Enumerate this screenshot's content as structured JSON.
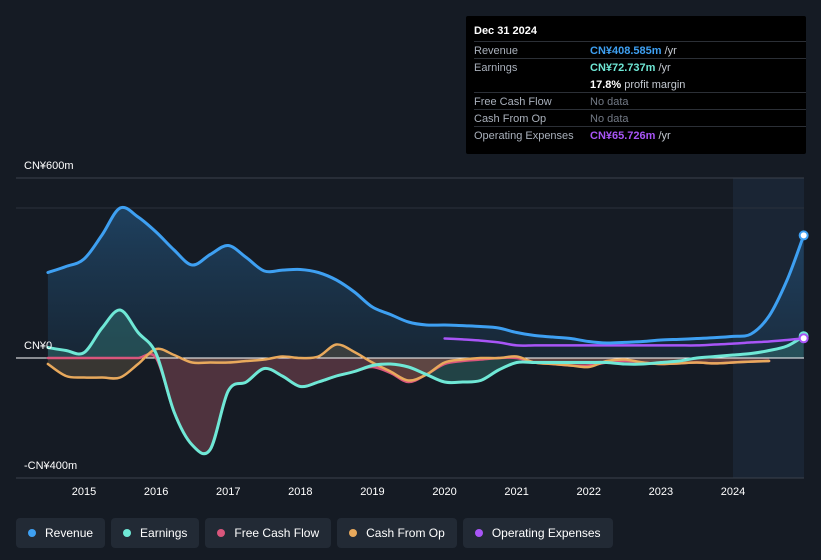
{
  "tooltip": {
    "date": "Dec 31 2024",
    "rows": [
      {
        "label": "Revenue",
        "value": "CN¥408.585m",
        "unit": " /yr",
        "color": "#3ea0f2"
      },
      {
        "label": "Earnings",
        "value": "CN¥72.737m",
        "unit": " /yr",
        "color": "#6fe8d6"
      },
      {
        "label": "Free Cash Flow",
        "value": "No data"
      },
      {
        "label": "Cash From Op",
        "value": "No data"
      },
      {
        "label": "Operating Expenses",
        "value": "CN¥65.726m",
        "unit": " /yr",
        "color": "#a855f7"
      }
    ],
    "margin_value": "17.8%",
    "margin_label": " profit margin"
  },
  "axis": {
    "top_label": "CN¥600m",
    "zero_label": "CN¥0",
    "bottom_label": "-CN¥400m"
  },
  "legend": [
    {
      "label": "Revenue",
      "color": "#3ea0f2"
    },
    {
      "label": "Earnings",
      "color": "#6fe8d6"
    },
    {
      "label": "Free Cash Flow",
      "color": "#d9567c"
    },
    {
      "label": "Cash From Op",
      "color": "#e8a95c"
    },
    {
      "label": "Operating Expenses",
      "color": "#a855f7"
    }
  ],
  "chart_data": {
    "type": "line",
    "title": "",
    "ylim": [
      -400,
      600
    ],
    "x_ticks": [
      "2015",
      "2016",
      "2017",
      "2018",
      "2019",
      "2020",
      "2021",
      "2022",
      "2023",
      "2024"
    ],
    "series": [
      {
        "name": "Revenue",
        "color": "#3ea0f2",
        "x": [
          2014.5,
          2014.75,
          2015.0,
          2015.25,
          2015.5,
          2015.75,
          2016.0,
          2016.25,
          2016.5,
          2016.75,
          2017.0,
          2017.25,
          2017.5,
          2017.75,
          2018.0,
          2018.25,
          2018.5,
          2018.75,
          2019.0,
          2019.25,
          2019.5,
          2019.75,
          2020.0,
          2020.25,
          2020.5,
          2020.75,
          2021.0,
          2021.25,
          2021.5,
          2021.75,
          2022.0,
          2022.25,
          2022.5,
          2022.75,
          2023.0,
          2023.25,
          2023.5,
          2023.75,
          2024.0,
          2024.25,
          2024.5,
          2024.75,
          2024.98
        ],
        "values": [
          285,
          305,
          330,
          410,
          500,
          470,
          420,
          360,
          310,
          345,
          375,
          335,
          290,
          293,
          295,
          285,
          260,
          220,
          170,
          145,
          120,
          110,
          110,
          108,
          105,
          100,
          85,
          75,
          70,
          65,
          55,
          50,
          52,
          55,
          60,
          62,
          65,
          68,
          72,
          80,
          140,
          260,
          408.6
        ]
      },
      {
        "name": "Earnings",
        "color": "#6fe8d6",
        "x": [
          2014.5,
          2014.75,
          2015.0,
          2015.25,
          2015.5,
          2015.75,
          2016.0,
          2016.25,
          2016.5,
          2016.75,
          2017.0,
          2017.25,
          2017.5,
          2017.75,
          2018.0,
          2018.25,
          2018.5,
          2018.75,
          2019.0,
          2019.25,
          2019.5,
          2019.75,
          2020.0,
          2020.25,
          2020.5,
          2020.75,
          2021.0,
          2021.25,
          2021.5,
          2021.75,
          2022.0,
          2022.25,
          2022.5,
          2022.75,
          2023.0,
          2023.25,
          2023.5,
          2023.75,
          2024.0,
          2024.25,
          2024.5,
          2024.75,
          2024.98
        ],
        "values": [
          35,
          25,
          18,
          100,
          160,
          85,
          15,
          -180,
          -290,
          -305,
          -110,
          -80,
          -35,
          -60,
          -95,
          -80,
          -60,
          -45,
          -25,
          -20,
          -30,
          -55,
          -80,
          -80,
          -75,
          -40,
          -15,
          -15,
          -15,
          -15,
          -15,
          -15,
          -20,
          -20,
          -15,
          -10,
          0,
          5,
          10,
          15,
          25,
          40,
          72.7
        ]
      },
      {
        "name": "Free Cash Flow",
        "color": "#d9567c",
        "x": [
          2014.5,
          2014.75,
          2015.0,
          2015.25,
          2015.5,
          2015.75,
          2016.0,
          2016.25,
          2016.5,
          2016.75,
          2017.0,
          2017.25,
          2017.5,
          2017.75,
          2018.0,
          2018.25,
          2018.5,
          2018.75,
          2019.0,
          2019.25,
          2019.5,
          2019.75,
          2020.0,
          2020.25,
          2020.5,
          2020.75,
          2021.0,
          2021.25,
          2021.5,
          2021.75,
          2022.0,
          2022.25,
          2022.5,
          2022.75,
          2023.0,
          2023.25,
          2023.5,
          2023.75,
          2024.0,
          2024.25,
          2024.5
        ],
        "values": [
          0,
          0,
          0,
          0,
          0,
          0,
          0,
          -180,
          -290,
          -305,
          -110,
          -80,
          -35,
          -60,
          -95,
          -80,
          -60,
          -45,
          -30,
          -50,
          -80,
          -55,
          -20,
          -10,
          -5,
          0,
          0,
          -15,
          -20,
          -25,
          -25,
          -15,
          -10,
          -15,
          -20,
          -18,
          -15,
          -18,
          -15,
          -12,
          -10
        ]
      },
      {
        "name": "Cash From Op",
        "color": "#e8a95c",
        "x": [
          2014.5,
          2014.75,
          2015.0,
          2015.25,
          2015.5,
          2015.75,
          2016.0,
          2016.25,
          2016.5,
          2016.75,
          2017.0,
          2017.25,
          2017.5,
          2017.75,
          2018.0,
          2018.25,
          2018.5,
          2018.75,
          2019.0,
          2019.25,
          2019.5,
          2019.75,
          2020.0,
          2020.25,
          2020.5,
          2020.75,
          2021.0,
          2021.25,
          2021.5,
          2021.75,
          2022.0,
          2022.25,
          2022.5,
          2022.75,
          2023.0,
          2023.25,
          2023.5,
          2023.75,
          2024.0,
          2024.25,
          2024.5
        ],
        "values": [
          -20,
          -60,
          -65,
          -65,
          -65,
          -20,
          30,
          10,
          -15,
          -15,
          -15,
          -10,
          -5,
          5,
          0,
          5,
          45,
          20,
          -15,
          -45,
          -75,
          -55,
          -15,
          -5,
          0,
          0,
          5,
          -15,
          -20,
          -25,
          -30,
          -10,
          -5,
          -15,
          -20,
          -18,
          -15,
          -18,
          -15,
          -12,
          -10
        ]
      },
      {
        "name": "Operating Expenses",
        "color": "#a855f7",
        "x": [
          2020.0,
          2020.25,
          2020.5,
          2020.75,
          2021.0,
          2021.25,
          2021.5,
          2021.75,
          2022.0,
          2022.25,
          2022.5,
          2022.75,
          2023.0,
          2023.25,
          2023.5,
          2023.75,
          2024.0,
          2024.25,
          2024.5,
          2024.75,
          2024.98
        ],
        "values": [
          65,
          62,
          58,
          52,
          42,
          42,
          42,
          42,
          42,
          42,
          42,
          42,
          42,
          42,
          42,
          45,
          48,
          52,
          55,
          60,
          65.7
        ]
      }
    ]
  }
}
